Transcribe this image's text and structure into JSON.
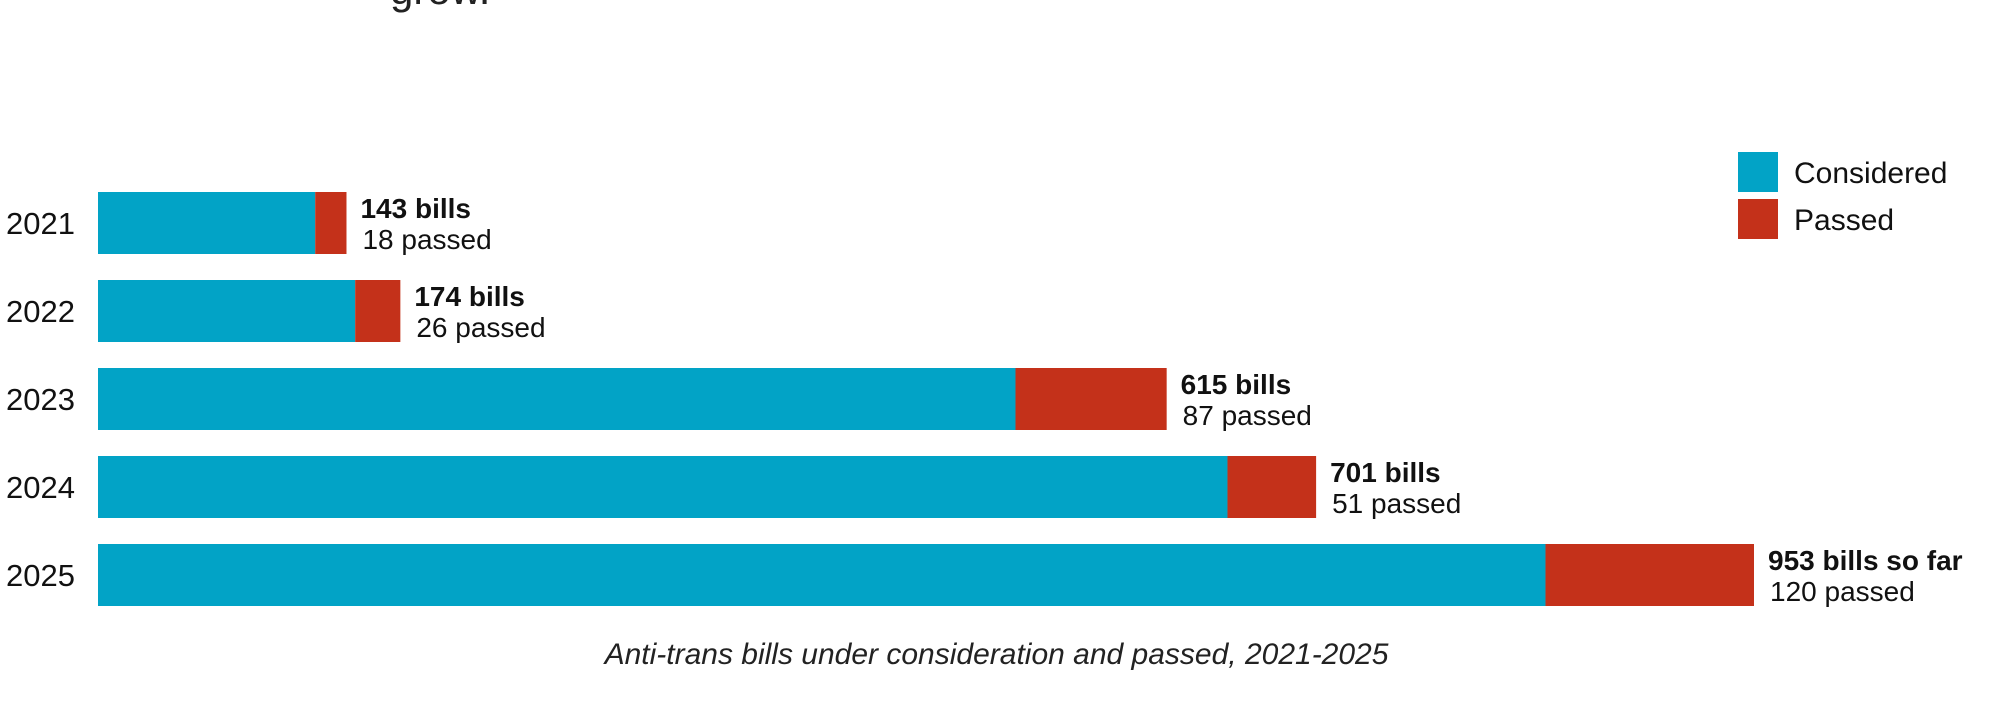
{
  "headline_fragment": "grow.",
  "caption": "Anti-trans bills under consideration and passed, 2021-2025",
  "colors": {
    "considered": "#02A3C6",
    "passed": "#C4311A"
  },
  "chart_data": {
    "type": "bar",
    "orientation": "horizontal",
    "stacked": true,
    "categories": [
      "2021",
      "2022",
      "2023",
      "2024",
      "2025"
    ],
    "series": [
      {
        "name": "Considered",
        "values": [
          125,
          148,
          528,
          650,
          833
        ]
      },
      {
        "name": "Passed",
        "values": [
          18,
          26,
          87,
          51,
          120
        ]
      }
    ],
    "totals": [
      143,
      174,
      615,
      701,
      953
    ],
    "labels": [
      {
        "total": "143 bills",
        "passed": "18 passed"
      },
      {
        "total": "174 bills",
        "passed": "26 passed"
      },
      {
        "total": "615 bills",
        "passed": "87 passed"
      },
      {
        "total": "701 bills",
        "passed": "51 passed"
      },
      {
        "total": "953 bills so far",
        "passed": "120 passed"
      }
    ],
    "legend": {
      "placement": "top-right",
      "items": [
        "Considered",
        "Passed"
      ]
    },
    "xlim": [
      0,
      953
    ],
    "grid": false,
    "xlabel": "",
    "ylabel": ""
  }
}
